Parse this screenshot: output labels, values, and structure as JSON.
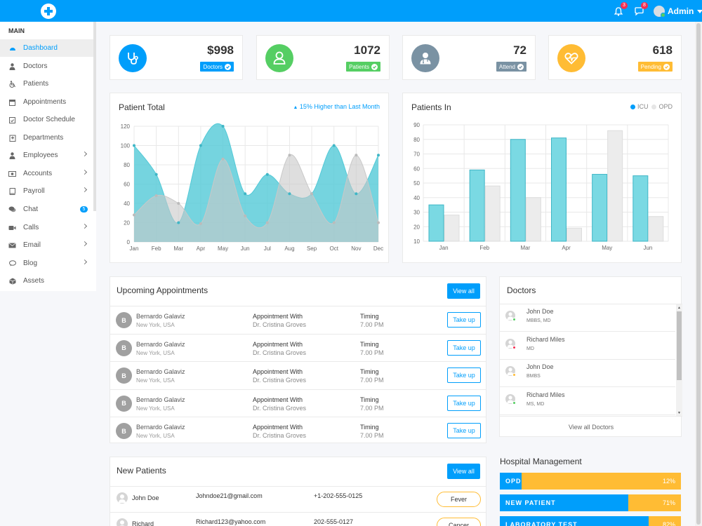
{
  "header": {
    "user_name": "Admin",
    "notifications_count": "3",
    "messages_count": "8"
  },
  "sidebar": {
    "section_title": "MAIN",
    "items": [
      {
        "label": "Dashboard",
        "icon": "dashboard-icon",
        "active": true,
        "has_arrow": false
      },
      {
        "label": "Doctors",
        "icon": "doctor-icon",
        "has_arrow": false
      },
      {
        "label": "Patients",
        "icon": "wheelchair-icon",
        "has_arrow": false
      },
      {
        "label": "Appointments",
        "icon": "calendar-icon",
        "has_arrow": false
      },
      {
        "label": "Doctor Schedule",
        "icon": "calendar-check-icon",
        "has_arrow": false
      },
      {
        "label": "Departments",
        "icon": "hospital-icon",
        "has_arrow": false
      },
      {
        "label": "Employees",
        "icon": "user-icon",
        "has_arrow": true
      },
      {
        "label": "Accounts",
        "icon": "money-icon",
        "has_arrow": true
      },
      {
        "label": "Payroll",
        "icon": "book-icon",
        "has_arrow": true
      },
      {
        "label": "Chat",
        "icon": "chat-icon",
        "count": "5"
      },
      {
        "label": "Calls",
        "icon": "video-icon",
        "has_arrow": true
      },
      {
        "label": "Email",
        "icon": "envelope-icon",
        "has_arrow": true
      },
      {
        "label": "Blog",
        "icon": "comment-icon",
        "has_arrow": true
      },
      {
        "label": "Assets",
        "icon": "cube-icon",
        "has_arrow": false
      }
    ]
  },
  "stats": [
    {
      "value": "$998",
      "label": "Doctors",
      "color": "#009efb",
      "icon": "stethoscope-icon"
    },
    {
      "value": "1072",
      "label": "Patients",
      "color": "#55ce63",
      "icon": "user-icon"
    },
    {
      "value": "72",
      "label": "Attend",
      "color": "#7a92a3",
      "icon": "doctor-icon"
    },
    {
      "value": "618",
      "label": "Pending",
      "color": "#ffbc34",
      "icon": "heartbeat-icon"
    }
  ],
  "patient_total": {
    "title": "Patient Total",
    "note": "15% Higher than Last Month"
  },
  "patients_in": {
    "title": "Patients In",
    "legend": [
      "ICU",
      "OPD"
    ]
  },
  "chart_data": [
    {
      "type": "area",
      "title": "Patient Total",
      "categories": [
        "Jan",
        "Feb",
        "Mar",
        "Apr",
        "May",
        "Jun",
        "Jul",
        "Aug",
        "Sep",
        "Oct",
        "Nov",
        "Dec"
      ],
      "series": [
        {
          "values": [
            100,
            70,
            20,
            100,
            120,
            50,
            70,
            50,
            50,
            100,
            50,
            90
          ],
          "color": "#52c9d7"
        },
        {
          "values": [
            28,
            48,
            40,
            19,
            86,
            27,
            20,
            90,
            50,
            20,
            90,
            20
          ],
          "color": "#c8c8c8"
        }
      ],
      "ylim": [
        0,
        120
      ],
      "yticks": [
        0,
        20,
        40,
        60,
        80,
        100,
        120
      ]
    },
    {
      "type": "bar",
      "title": "Patients In",
      "categories": [
        "Jan",
        "Feb",
        "Mar",
        "Apr",
        "May",
        "Jun"
      ],
      "series": [
        {
          "name": "ICU",
          "values": [
            35,
            59,
            80,
            81,
            56,
            55
          ],
          "color": "#7ad9e3"
        },
        {
          "name": "OPD",
          "values": [
            28,
            48,
            40,
            19,
            86,
            27
          ],
          "color": "#ececec"
        }
      ],
      "ylim": [
        10,
        90
      ],
      "yticks": [
        10,
        20,
        30,
        40,
        50,
        60,
        70,
        80,
        90
      ]
    }
  ],
  "appointments": {
    "title": "Upcoming Appointments",
    "view_all": "View all",
    "rows": [
      {
        "initial": "B",
        "name": "Bernardo Galaviz",
        "location": "New York, USA",
        "with_label": "Appointment With",
        "doctor": "Dr. Cristina Groves",
        "timing_label": "Timing",
        "time": "7.00 PM",
        "action": "Take up"
      },
      {
        "initial": "B",
        "name": "Bernardo Galaviz",
        "location": "New York, USA",
        "with_label": "Appointment With",
        "doctor": "Dr. Cristina Groves",
        "timing_label": "Timing",
        "time": "7.00 PM",
        "action": "Take up"
      },
      {
        "initial": "B",
        "name": "Bernardo Galaviz",
        "location": "New York, USA",
        "with_label": "Appointment With",
        "doctor": "Dr. Cristina Groves",
        "timing_label": "Timing",
        "time": "7.00 PM",
        "action": "Take up"
      },
      {
        "initial": "B",
        "name": "Bernardo Galaviz",
        "location": "New York, USA",
        "with_label": "Appointment With",
        "doctor": "Dr. Cristina Groves",
        "timing_label": "Timing",
        "time": "7.00 PM",
        "action": "Take up"
      },
      {
        "initial": "B",
        "name": "Bernardo Galaviz",
        "location": "New York, USA",
        "with_label": "Appointment With",
        "doctor": "Dr. Cristina Groves",
        "timing_label": "Timing",
        "time": "7.00 PM",
        "action": "Take up"
      }
    ]
  },
  "doctors": {
    "title": "Doctors",
    "view_all": "View all Doctors",
    "rows": [
      {
        "name": "John Doe",
        "degree": "MBBS, MD",
        "status_color": "#55ce63"
      },
      {
        "name": "Richard Miles",
        "degree": "MD",
        "status_color": "#f62d51"
      },
      {
        "name": "John Doe",
        "degree": "BMBS",
        "status_color": "#ffbc34"
      },
      {
        "name": "Richard Miles",
        "degree": "MS, MD",
        "status_color": "#55ce63"
      }
    ]
  },
  "new_patients": {
    "title": "New Patients",
    "view_all": "View all",
    "rows": [
      {
        "name": "John Doe",
        "email": "Johndoe21@gmail.com",
        "phone": "+1-202-555-0125",
        "condition": "Fever"
      },
      {
        "name": "Richard",
        "email": "Richard123@yahoo.com",
        "phone": "202-555-0127",
        "condition": "Cancer"
      }
    ]
  },
  "hospital_management": {
    "title": "Hospital Management",
    "bars": [
      {
        "label": "OPD",
        "percent": "12%",
        "value": 12
      },
      {
        "label": "NEW PATIENT",
        "percent": "71%",
        "value": 71
      },
      {
        "label": "LABORATORY TEST",
        "percent": "82%",
        "value": 82
      }
    ]
  }
}
